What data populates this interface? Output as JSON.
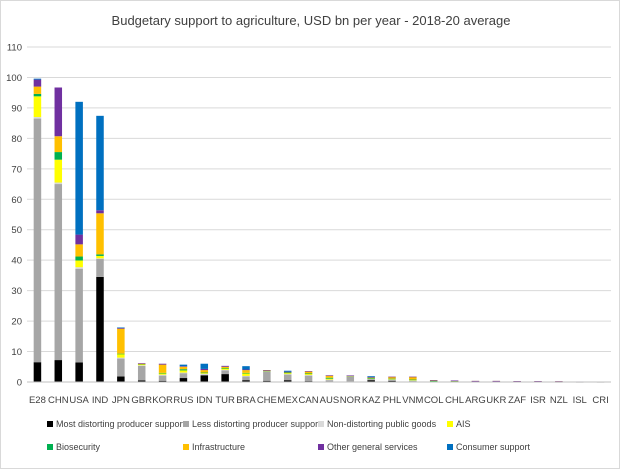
{
  "chart_data": {
    "type": "bar",
    "stacked": true,
    "title": "Budgetary support to agriculture, USD bn per year - 2018-20 average",
    "xlabel": "",
    "ylabel": "",
    "ylim": [
      0,
      110
    ],
    "yticks": [
      0,
      10,
      20,
      30,
      40,
      50,
      60,
      70,
      80,
      90,
      100,
      110
    ],
    "grid": true,
    "legend_position": "bottom",
    "categories": [
      "E28",
      "CHN",
      "USA",
      "IND",
      "JPN",
      "GBR",
      "KOR",
      "RUS",
      "IDN",
      "TUR",
      "BRA",
      "CHE",
      "MEX",
      "CAN",
      "AUS",
      "NOR",
      "KAZ",
      "PHL",
      "VNM",
      "COL",
      "CHL",
      "ARG",
      "UKR",
      "ZAF",
      "ISR",
      "NZL",
      "ISL",
      "CRI"
    ],
    "series": [
      {
        "name": "Most distorting producer support",
        "color": "#000000",
        "values": [
          6.5,
          7.2,
          6.4,
          34.5,
          1.8,
          0.5,
          0.4,
          1.3,
          2.2,
          2.6,
          0.6,
          0.4,
          0.6,
          0.3,
          0.1,
          0.2,
          0.6,
          0.4,
          0.2,
          0.1,
          0.05,
          0.05,
          0.05,
          0.05,
          0.05,
          0.02,
          0.02,
          0.02
        ]
      },
      {
        "name": "Less distorting producer support",
        "color": "#a6a6a6",
        "values": [
          80.0,
          57.8,
          30.8,
          6.0,
          5.9,
          4.8,
          1.7,
          1.6,
          0.2,
          1.2,
          1.2,
          3.1,
          1.9,
          1.8,
          0.5,
          1.6,
          0.4,
          0.3,
          0.2,
          0.1,
          0.1,
          0.05,
          0.05,
          0.02,
          0.05,
          0.02,
          0.05,
          0.02
        ]
      },
      {
        "name": "Non-distorting public goods",
        "color": "#d9d9d9",
        "values": [
          0.5,
          0.5,
          0.5,
          0.1,
          0.3,
          0.2,
          0.3,
          0.2,
          0.3,
          0.2,
          0.2,
          0.1,
          0.1,
          0.2,
          0.2,
          0.1,
          0.1,
          0.1,
          0.1,
          0.05,
          0.05,
          0.05,
          0.05,
          0.05,
          0.02,
          0.02,
          0.02,
          0.02
        ]
      },
      {
        "name": "AIS",
        "color": "#ffff00",
        "values": [
          6.8,
          7.5,
          2.2,
          0.8,
          1.2,
          0.3,
          0.5,
          0.7,
          0.3,
          0.5,
          0.8,
          0.1,
          0.3,
          0.3,
          0.3,
          0.1,
          0.1,
          0.2,
          0.2,
          0.1,
          0.1,
          0.05,
          0.05,
          0.05,
          0.05,
          0.05,
          0.02,
          0.02
        ]
      },
      {
        "name": "Biosecurity",
        "color": "#00b050",
        "values": [
          0.8,
          2.5,
          1.3,
          0.5,
          0.1,
          0.1,
          0.1,
          0.4,
          0.1,
          0.1,
          0.2,
          0.05,
          0.3,
          0.2,
          0.3,
          0.05,
          0.1,
          0.1,
          0.1,
          0.05,
          0.05,
          0.05,
          0.05,
          0.02,
          0.02,
          0.05,
          0.02,
          0.02
        ]
      },
      {
        "name": "Infrastructure",
        "color": "#ffc000",
        "values": [
          2.4,
          5.2,
          4.0,
          13.5,
          8.2,
          0.1,
          2.7,
          0.8,
          0.8,
          0.4,
          0.9,
          0.1,
          0.1,
          0.6,
          0.7,
          0.05,
          0.2,
          0.6,
          0.9,
          0.2,
          0.1,
          0.1,
          0.1,
          0.1,
          0.1,
          0.1,
          0.02,
          0.02
        ]
      },
      {
        "name": "Other general services",
        "color": "#7030a0",
        "values": [
          2.3,
          16.0,
          3.2,
          1.0,
          0.3,
          0.2,
          0.3,
          0.2,
          0.4,
          0.3,
          0.2,
          0.05,
          0.1,
          0.2,
          0.1,
          0.05,
          0.1,
          0.05,
          0.05,
          0.05,
          0.05,
          0.02,
          0.02,
          0.02,
          0.02,
          0.02,
          0.02,
          0.02
        ]
      },
      {
        "name": "Consumer support",
        "color": "#0070c0",
        "values": [
          0.3,
          0.0,
          43.6,
          31.0,
          0.1,
          0.0,
          0.0,
          0.5,
          1.7,
          0.0,
          1.1,
          0.0,
          0.3,
          0.0,
          0.0,
          0.0,
          0.3,
          0.0,
          0.0,
          0.0,
          0.0,
          0.0,
          0.0,
          0.0,
          0.0,
          0.0,
          0.0,
          0.0
        ]
      }
    ]
  }
}
